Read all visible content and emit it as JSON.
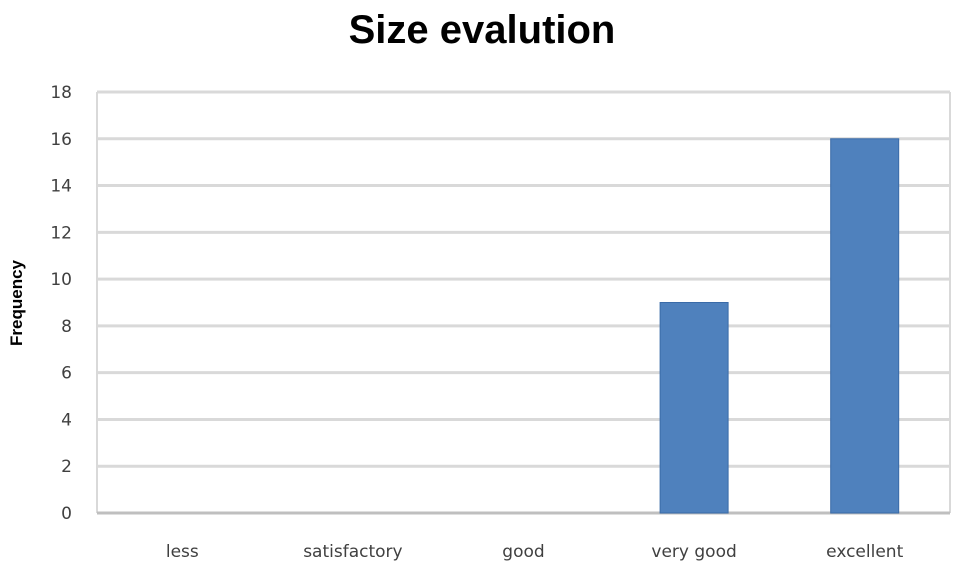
{
  "chart_data": {
    "type": "bar",
    "title": "Size evalution",
    "xlabel": "",
    "ylabel": "Frequency",
    "categories": [
      "less",
      "satisfactory",
      "good",
      "very good",
      "excellent"
    ],
    "values": [
      0,
      0,
      0,
      9,
      16
    ],
    "ylim": [
      0,
      18
    ],
    "yticks": [
      0,
      2,
      4,
      6,
      8,
      10,
      12,
      14,
      16,
      18
    ],
    "grid": true,
    "legend": "none",
    "colors": {
      "bar": "#4F81BD",
      "bar_edge": "#3A6BA8",
      "grid": "#D9D9D9",
      "axis": "#BFBFBF"
    }
  }
}
